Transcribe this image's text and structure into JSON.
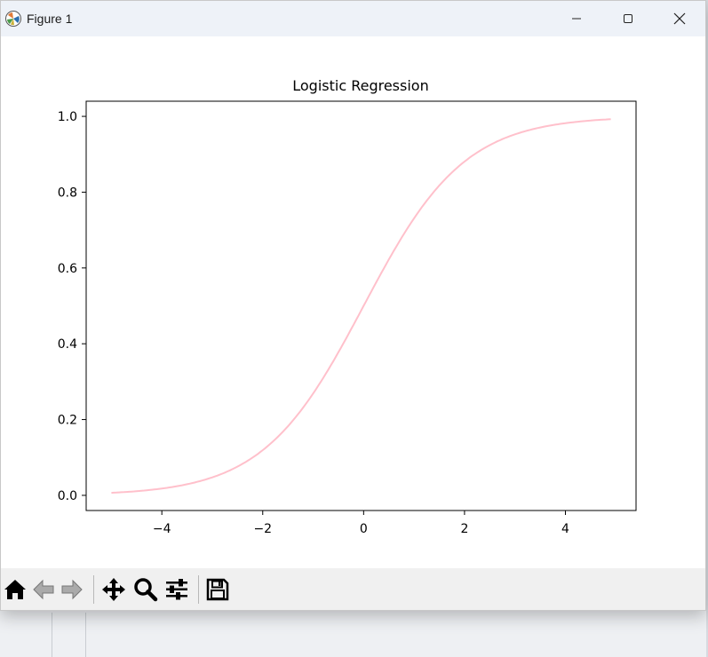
{
  "window": {
    "title": "Figure 1",
    "controls": {
      "minimize": "minimize",
      "maximize": "maximize",
      "close": "close"
    }
  },
  "toolbar": {
    "buttons": [
      {
        "name": "home",
        "icon": "home-icon"
      },
      {
        "name": "back",
        "icon": "back-arrow-icon"
      },
      {
        "name": "forward",
        "icon": "forward-arrow-icon"
      },
      {
        "name": "pan",
        "icon": "move-icon"
      },
      {
        "name": "zoom",
        "icon": "zoom-icon"
      },
      {
        "name": "configure-subplots",
        "icon": "sliders-icon"
      },
      {
        "name": "save",
        "icon": "save-icon"
      }
    ]
  },
  "colors": {
    "line": "#ffc0cb",
    "axes": "#000000",
    "toolbar_bg": "#f0f0f0",
    "titlebar_bg": "#eef2f8"
  },
  "chart_data": {
    "type": "line",
    "title": "Logistic Regression",
    "xlabel": "",
    "ylabel": "",
    "xlim": [
      -5.5,
      5.4
    ],
    "ylim": [
      -0.04,
      1.04
    ],
    "xticks": [
      -4,
      -2,
      0,
      2,
      4
    ],
    "xtick_labels": [
      "−4",
      "−2",
      "0",
      "2",
      "4"
    ],
    "yticks": [
      0.0,
      0.2,
      0.4,
      0.6,
      0.8,
      1.0
    ],
    "ytick_labels": [
      "0.0",
      "0.2",
      "0.4",
      "0.6",
      "0.8",
      "1.0"
    ],
    "grid": false,
    "series": [
      {
        "color": "#ffc0cb",
        "function": "sigmoid",
        "x_range": [
          -5.0,
          4.9
        ],
        "x": [
          -5.0,
          -4.5,
          -4.0,
          -3.5,
          -3.0,
          -2.5,
          -2.0,
          -1.5,
          -1.0,
          -0.5,
          0.0,
          0.5,
          1.0,
          1.5,
          2.0,
          2.5,
          3.0,
          3.5,
          4.0,
          4.5,
          4.9
        ],
        "y": [
          0.007,
          0.011,
          0.018,
          0.029,
          0.047,
          0.076,
          0.119,
          0.182,
          0.269,
          0.378,
          0.5,
          0.622,
          0.731,
          0.818,
          0.881,
          0.924,
          0.953,
          0.971,
          0.982,
          0.989,
          0.993
        ]
      }
    ]
  }
}
